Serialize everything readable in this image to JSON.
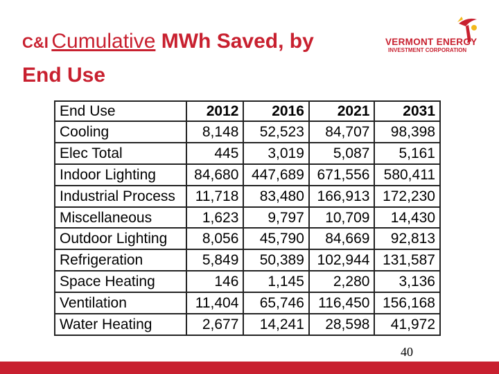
{
  "slide": {
    "title_prefix": "C&I",
    "title_underlined": "Cumulative",
    "title_rest": " MWh Saved, by",
    "title_line2": "End Use",
    "page_number": "40"
  },
  "logo": {
    "line1": "VERMONT ENERGY",
    "line2": "INVESTMENT CORPORATION",
    "color": "#c8202f",
    "accent": "#f2b81c"
  },
  "table": {
    "headers": [
      "End Use",
      "2012",
      "2016",
      "2021",
      "2031"
    ],
    "rows": [
      [
        "Cooling",
        "8,148",
        "52,523",
        "84,707",
        "98,398"
      ],
      [
        "Elec Total",
        "445",
        "3,019",
        "5,087",
        "5,161"
      ],
      [
        "Indoor Lighting",
        "84,680",
        "447,689",
        "671,556",
        "580,411"
      ],
      [
        "Industrial Process",
        "11,718",
        "83,480",
        "166,913",
        "172,230"
      ],
      [
        "Miscellaneous",
        "1,623",
        "9,797",
        "10,709",
        "14,430"
      ],
      [
        "Outdoor Lighting",
        "8,056",
        "45,790",
        "84,669",
        "92,813"
      ],
      [
        "Refrigeration",
        "5,849",
        "50,389",
        "102,944",
        "131,587"
      ],
      [
        "Space Heating",
        "146",
        "1,145",
        "2,280",
        "3,136"
      ],
      [
        "Ventilation",
        "11,404",
        "65,746",
        "116,450",
        "156,168"
      ],
      [
        "Water Heating",
        "2,677",
        "14,241",
        "28,598",
        "41,972"
      ]
    ]
  },
  "colors": {
    "brand_red": "#c8202f"
  }
}
